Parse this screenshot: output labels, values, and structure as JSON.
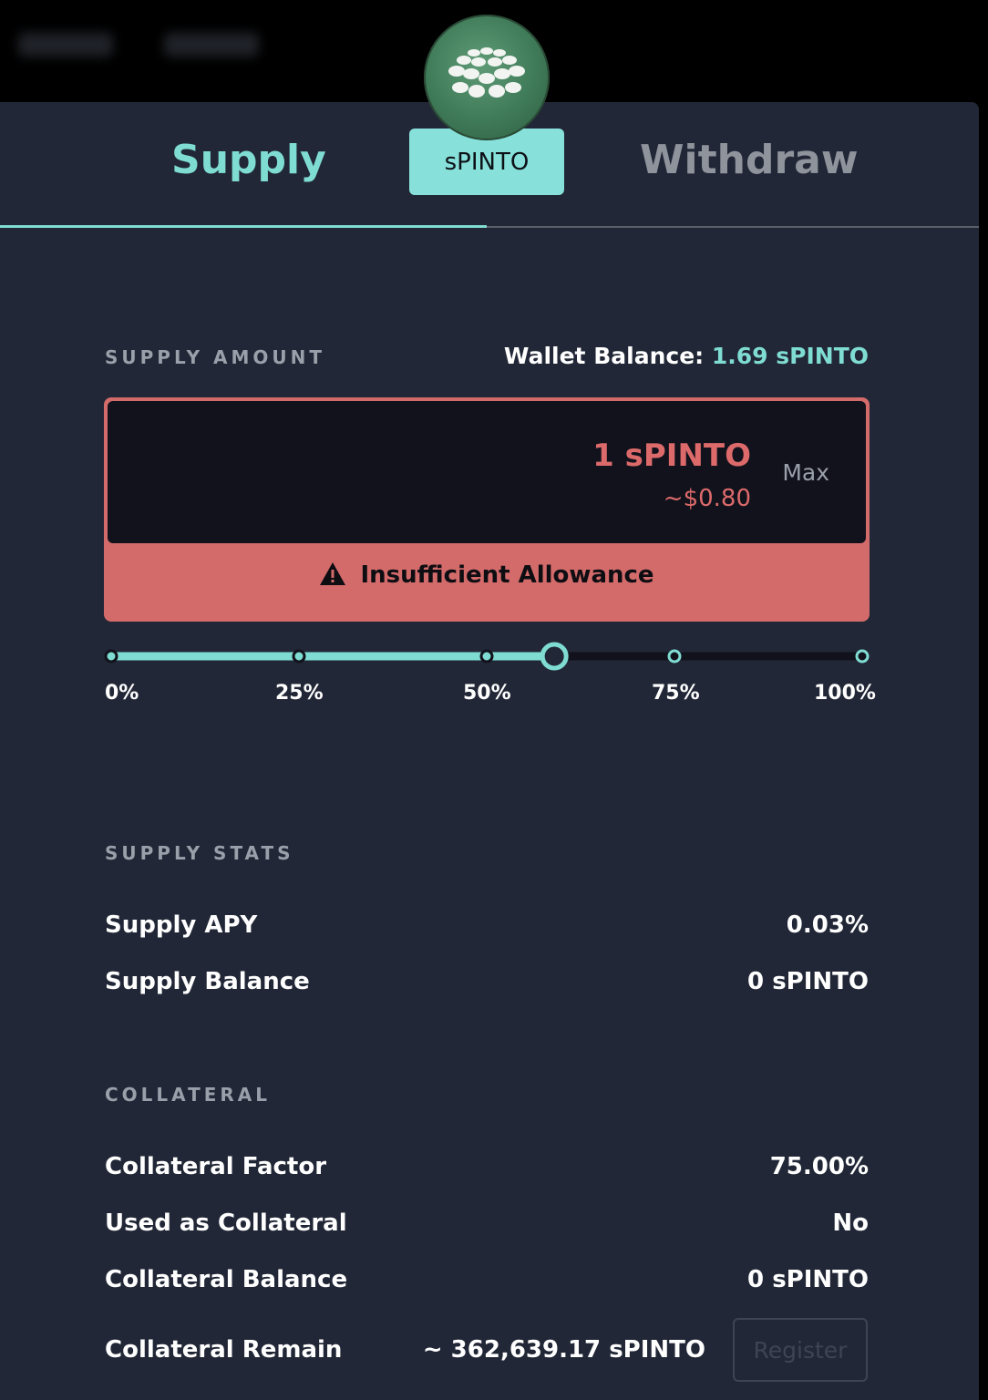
{
  "nav": {
    "items": [
      "STAKE",
      "CLAIM"
    ]
  },
  "tabs": {
    "supply": "Supply",
    "withdraw": "Withdraw",
    "active": "supply"
  },
  "token": {
    "symbol": "sPINTO"
  },
  "supply_amount": {
    "label": "SUPPLY AMOUNT",
    "wallet_label": "Wallet Balance:",
    "wallet_value": "1.69 sPINTO",
    "amount": "1 sPINTO",
    "usd": "~$0.80",
    "max_label": "Max",
    "warning": "Insufficient Allowance"
  },
  "slider": {
    "value_fraction": 0.59,
    "ticks": [
      "0%",
      "25%",
      "50%",
      "75%",
      "100%"
    ]
  },
  "supply_stats": {
    "label": "SUPPLY STATS",
    "rows": [
      {
        "label": "Supply APY",
        "value": "0.03%"
      },
      {
        "label": "Supply Balance",
        "value": "0 sPINTO"
      }
    ]
  },
  "collateral": {
    "label": "COLLATERAL",
    "rows": [
      {
        "label": "Collateral Factor",
        "value": "75.00%"
      },
      {
        "label": "Used as Collateral",
        "value": "No"
      },
      {
        "label": "Collateral Balance",
        "value": "0 sPINTO"
      },
      {
        "label": "Collateral Remain",
        "value": "~ 362,639.17 sPINTO"
      }
    ],
    "register_label": "Register"
  },
  "colors": {
    "accent": "#7fdcd2",
    "error": "#d36b6b",
    "panel": "#212736"
  }
}
